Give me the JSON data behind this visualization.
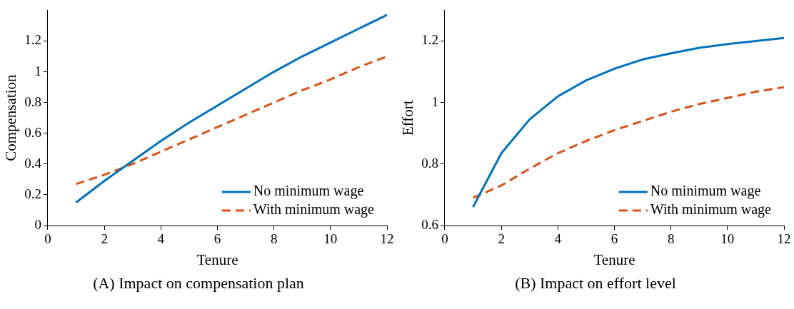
{
  "chart_data": [
    {
      "type": "line",
      "title": "(A) Impact on compensation plan",
      "xlabel": "Tenure",
      "ylabel": "Compensation",
      "x": [
        1,
        2,
        3,
        4,
        5,
        6,
        7,
        8,
        9,
        10,
        11,
        12
      ],
      "series": [
        {
          "name": "No minimum wage",
          "color": "#0072bd",
          "line_style": "solid",
          "values": [
            0.15,
            0.29,
            0.42,
            0.55,
            0.67,
            0.78,
            0.89,
            1.0,
            1.1,
            1.19,
            1.28,
            1.37
          ]
        },
        {
          "name": "With minimum wage",
          "color": "#d95319",
          "line_style": "dashed",
          "values": [
            0.27,
            0.33,
            0.4,
            0.48,
            0.56,
            0.64,
            0.72,
            0.8,
            0.88,
            0.95,
            1.03,
            1.1
          ]
        }
      ],
      "xlim": [
        0,
        12
      ],
      "xticks": [
        0,
        2,
        4,
        6,
        8,
        10,
        12
      ],
      "ylim": [
        0,
        1.4
      ],
      "yticks": [
        0,
        0.2,
        0.4,
        0.6,
        0.8,
        1,
        1.2
      ],
      "grid": false,
      "legend": "bottom right",
      "marker": "none"
    },
    {
      "type": "line",
      "title": "(B) Impact on effort level",
      "xlabel": "Tenure",
      "ylabel": "Effort",
      "x": [
        1,
        2,
        3,
        4,
        5,
        6,
        7,
        8,
        9,
        10,
        11,
        12
      ],
      "series": [
        {
          "name": "No minimum wage",
          "color": "#0072bd",
          "line_style": "solid",
          "values": [
            0.66,
            0.835,
            0.945,
            1.02,
            1.072,
            1.11,
            1.14,
            1.16,
            1.178,
            1.19,
            1.2,
            1.21
          ]
        },
        {
          "name": "With minimum wage",
          "color": "#d95319",
          "line_style": "dashed",
          "values": [
            0.69,
            0.73,
            0.785,
            0.835,
            0.875,
            0.91,
            0.94,
            0.97,
            0.995,
            1.015,
            1.035,
            1.05
          ]
        }
      ],
      "xlim": [
        0,
        12
      ],
      "xticks": [
        0,
        2,
        4,
        6,
        8,
        10,
        12
      ],
      "ylim": [
        0.6,
        1.3
      ],
      "yticks": [
        0.6,
        0.8,
        1,
        1.2
      ],
      "grid": false,
      "legend": "bottom right",
      "marker": "none"
    }
  ]
}
